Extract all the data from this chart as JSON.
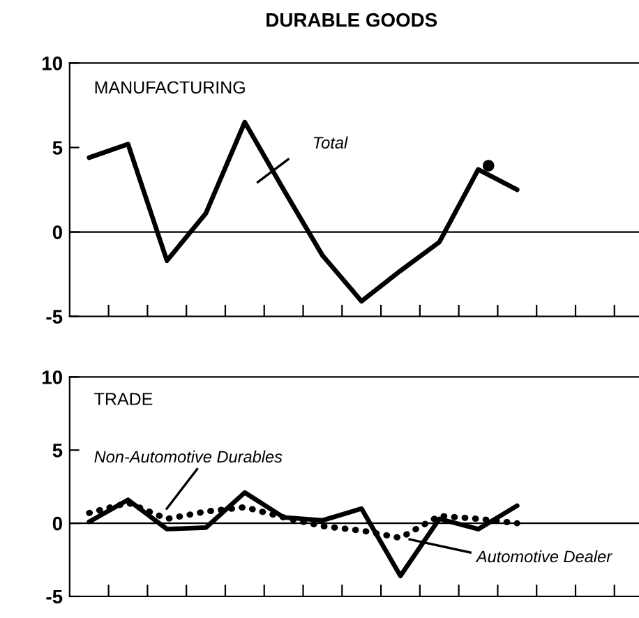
{
  "chart_data": [
    {
      "type": "line",
      "title": "DURABLE GOODS",
      "subtitle": "MANUFACTURING",
      "categories": [
        null,
        null,
        null,
        null,
        null,
        null,
        null,
        null,
        null,
        null,
        null,
        null
      ],
      "series": [
        {
          "color": "#000000",
          "values": [
            4.4,
            5.2,
            -1.7,
            1.1,
            6.5,
            2.5,
            -1.4,
            -4.1,
            -2.3,
            -0.6,
            3.7,
            2.5
          ]
        }
      ],
      "ylim": [
        -5,
        10
      ],
      "yticks": [
        -5,
        0,
        5,
        10
      ],
      "tick_labels": "y",
      "ref_lines": [
        {
          "axis": "y",
          "value": 0,
          "color": "#000000"
        }
      ],
      "annotations": [
        "Total"
      ]
    },
    {
      "type": "line",
      "subtitle": "TRADE",
      "categories": [
        null,
        null,
        null,
        null,
        null,
        null,
        null,
        null,
        null,
        null,
        null,
        null
      ],
      "series": [
        {
          "color": "#000000",
          "line_style": "solid",
          "values": [
            0.1,
            1.6,
            -0.4,
            -0.3,
            2.1,
            0.4,
            0.2,
            1.0,
            -3.6,
            0.3,
            -0.4,
            1.2
          ]
        },
        {
          "color": "#000000",
          "line_style": "dotted",
          "values": [
            0.7,
            1.4,
            0.3,
            0.8,
            1.1,
            0.4,
            -0.2,
            -0.5,
            -1.0,
            0.5,
            0.3,
            0.0
          ]
        }
      ],
      "ylim": [
        -5,
        10
      ],
      "yticks": [
        -5,
        0,
        5,
        10
      ],
      "tick_labels": "y",
      "ref_lines": [
        {
          "axis": "y",
          "value": 0,
          "color": "#000000"
        }
      ],
      "annotations": [
        "Non-Automotive Durables",
        "Automotive Dealer"
      ]
    }
  ]
}
